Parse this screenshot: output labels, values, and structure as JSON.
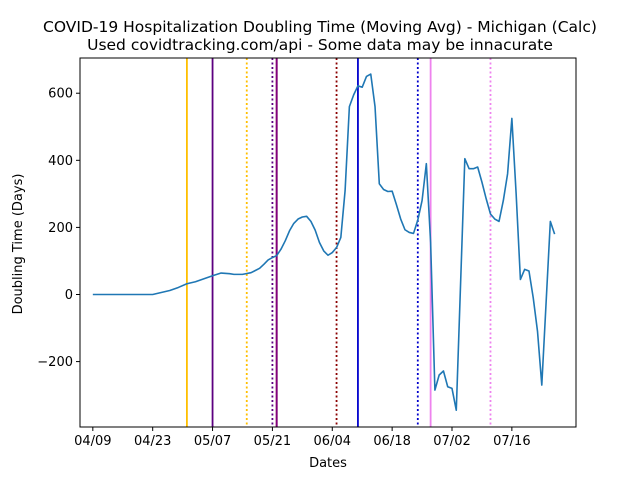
{
  "chart_data": {
    "type": "line",
    "title": "COVID-19 Hospitalization Doubling Time (Moving Avg) - Michigan (Calc)",
    "subtitle": "Used covidtracking.com/api - Some data may be innacurate",
    "xlabel": "Dates",
    "ylabel": "Doubling Time (Days)",
    "xlim": [
      "2020-04-06",
      "2020-07-31"
    ],
    "ylim": [
      -395,
      705
    ],
    "x_ticks": [
      {
        "date": "2020-04-09",
        "label": "04/09"
      },
      {
        "date": "2020-04-23",
        "label": "04/23"
      },
      {
        "date": "2020-05-07",
        "label": "05/07"
      },
      {
        "date": "2020-05-21",
        "label": "05/21"
      },
      {
        "date": "2020-06-04",
        "label": "06/04"
      },
      {
        "date": "2020-06-18",
        "label": "06/18"
      },
      {
        "date": "2020-07-02",
        "label": "07/02"
      },
      {
        "date": "2020-07-16",
        "label": "07/16"
      }
    ],
    "y_ticks": [
      {
        "value": -200,
        "label": "−200"
      },
      {
        "value": 0,
        "label": "0"
      },
      {
        "value": 200,
        "label": "200"
      },
      {
        "value": 400,
        "label": "400"
      },
      {
        "value": 600,
        "label": "600"
      }
    ],
    "grid": false,
    "legend": "none",
    "series": [
      {
        "color": "#1f77b4",
        "points": [
          [
            "2020-04-09",
            0
          ],
          [
            "2020-04-16",
            0
          ],
          [
            "2020-04-23",
            0
          ],
          [
            "2020-04-25",
            6
          ],
          [
            "2020-04-27",
            12
          ],
          [
            "2020-04-29",
            21
          ],
          [
            "2020-05-01",
            32
          ],
          [
            "2020-05-03",
            38
          ],
          [
            "2020-05-05",
            47
          ],
          [
            "2020-05-07",
            56
          ],
          [
            "2020-05-09",
            64
          ],
          [
            "2020-05-11",
            62
          ],
          [
            "2020-05-12",
            60
          ],
          [
            "2020-05-14",
            60
          ],
          [
            "2020-05-16",
            65
          ],
          [
            "2020-05-18",
            78
          ],
          [
            "2020-05-19",
            90
          ],
          [
            "2020-05-20",
            103
          ],
          [
            "2020-05-21",
            110
          ],
          [
            "2020-05-22",
            116
          ],
          [
            "2020-05-23",
            135
          ],
          [
            "2020-05-24",
            160
          ],
          [
            "2020-05-25",
            190
          ],
          [
            "2020-05-26",
            212
          ],
          [
            "2020-05-27",
            225
          ],
          [
            "2020-05-28",
            231
          ],
          [
            "2020-05-29",
            233
          ],
          [
            "2020-05-30",
            218
          ],
          [
            "2020-05-31",
            192
          ],
          [
            "2020-06-01",
            155
          ],
          [
            "2020-06-02",
            130
          ],
          [
            "2020-06-03",
            117
          ],
          [
            "2020-06-04",
            125
          ],
          [
            "2020-06-05",
            140
          ],
          [
            "2020-06-06",
            170
          ],
          [
            "2020-06-07",
            310
          ],
          [
            "2020-06-08",
            560
          ],
          [
            "2020-06-09",
            595
          ],
          [
            "2020-06-10",
            622
          ],
          [
            "2020-06-11",
            618
          ],
          [
            "2020-06-12",
            650
          ],
          [
            "2020-06-13",
            657
          ],
          [
            "2020-06-14",
            560
          ],
          [
            "2020-06-15",
            330
          ],
          [
            "2020-06-16",
            313
          ],
          [
            "2020-06-17",
            307
          ],
          [
            "2020-06-18",
            308
          ],
          [
            "2020-06-19",
            268
          ],
          [
            "2020-06-20",
            225
          ],
          [
            "2020-06-21",
            193
          ],
          [
            "2020-06-22",
            185
          ],
          [
            "2020-06-23",
            182
          ],
          [
            "2020-06-24",
            222
          ],
          [
            "2020-06-25",
            280
          ],
          [
            "2020-06-26",
            390
          ],
          [
            "2020-06-27",
            155
          ],
          [
            "2020-06-28",
            -285
          ],
          [
            "2020-06-29",
            -240
          ],
          [
            "2020-06-30",
            -228
          ],
          [
            "2020-07-01",
            -275
          ],
          [
            "2020-07-02",
            -280
          ],
          [
            "2020-07-03",
            -345
          ],
          [
            "2020-07-05",
            405
          ],
          [
            "2020-07-06",
            375
          ],
          [
            "2020-07-07",
            375
          ],
          [
            "2020-07-08",
            380
          ],
          [
            "2020-07-09",
            335
          ],
          [
            "2020-07-10",
            285
          ],
          [
            "2020-07-11",
            240
          ],
          [
            "2020-07-12",
            225
          ],
          [
            "2020-07-13",
            218
          ],
          [
            "2020-07-14",
            280
          ],
          [
            "2020-07-15",
            360
          ],
          [
            "2020-07-16",
            525
          ],
          [
            "2020-07-17",
            300
          ],
          [
            "2020-07-18",
            45
          ],
          [
            "2020-07-19",
            75
          ],
          [
            "2020-07-20",
            70
          ],
          [
            "2020-07-21",
            -10
          ],
          [
            "2020-07-22",
            -110
          ],
          [
            "2020-07-23",
            -270
          ],
          [
            "2020-07-25",
            218
          ],
          [
            "2020-07-26",
            180
          ]
        ]
      }
    ],
    "vertical_lines": [
      {
        "date": "2020-05-01",
        "color": "#ffbf00",
        "style": "solid"
      },
      {
        "date": "2020-05-07",
        "color": "#5c0080",
        "style": "solid"
      },
      {
        "date": "2020-05-15",
        "color": "#ffbf00",
        "style": "dotted"
      },
      {
        "date": "2020-05-21",
        "color": "#5c0080",
        "style": "dotted"
      },
      {
        "date": "2020-05-22",
        "color": "#8b0000",
        "style": "solid"
      },
      {
        "date": "2020-05-22",
        "color": "#800080",
        "style": "solid"
      },
      {
        "date": "2020-06-05",
        "color": "#8b0000",
        "style": "dotted"
      },
      {
        "date": "2020-06-10",
        "color": "#0000cd",
        "style": "solid"
      },
      {
        "date": "2020-06-24",
        "color": "#0000cd",
        "style": "dotted"
      },
      {
        "date": "2020-06-27",
        "color": "#ee82ee",
        "style": "solid"
      },
      {
        "date": "2020-07-11",
        "color": "#ee82ee",
        "style": "dotted"
      }
    ]
  }
}
